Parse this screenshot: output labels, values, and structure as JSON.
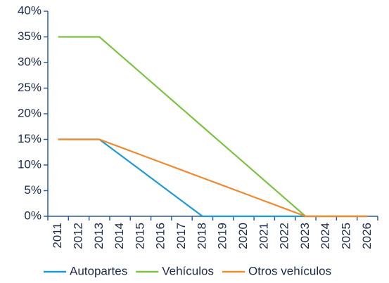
{
  "chart_data": {
    "type": "line",
    "categories": [
      "2011",
      "2012",
      "2013",
      "2014",
      "2015",
      "2016",
      "2017",
      "2018",
      "2019",
      "2020",
      "2021",
      "2022",
      "2023",
      "2024",
      "2025",
      "2026"
    ],
    "series": [
      {
        "name": "Autopartes",
        "color": "#1e9ad6",
        "values": [
          15,
          15,
          15,
          12,
          9,
          6,
          3,
          0,
          0,
          0,
          0,
          0,
          0,
          0,
          0,
          0
        ]
      },
      {
        "name": "Vehículos",
        "color": "#7dc242",
        "values": [
          35,
          35,
          35,
          31.5,
          28,
          24.5,
          21,
          17.5,
          14,
          10.5,
          7,
          3.5,
          0,
          0,
          0,
          0
        ]
      },
      {
        "name": "Otros vehículos",
        "color": "#f08a2e",
        "values": [
          15,
          15,
          15,
          13.5,
          12,
          10.5,
          9,
          7.5,
          6,
          4.5,
          3,
          1.5,
          0,
          0,
          0,
          0
        ]
      }
    ],
    "ylim": [
      0,
      40
    ],
    "yticks": [
      {
        "value": 0,
        "label": "0%"
      },
      {
        "value": 5,
        "label": "5%"
      },
      {
        "value": 10,
        "label": "10%"
      },
      {
        "value": 15,
        "label": "15%"
      },
      {
        "value": 20,
        "label": "20%"
      },
      {
        "value": 25,
        "label": "25%"
      },
      {
        "value": 30,
        "label": "30%"
      },
      {
        "value": 35,
        "label": "35%"
      },
      {
        "value": 40,
        "label": "40%"
      }
    ],
    "legend": "bottom"
  }
}
